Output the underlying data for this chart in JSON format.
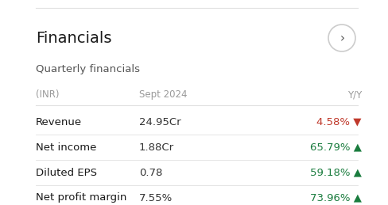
{
  "title": "Financials",
  "subtitle": "Quarterly financials",
  "bg_color": "#ffffff",
  "header_color": "#999999",
  "title_color": "#1a1a1a",
  "subtitle_color": "#555555",
  "label_color": "#1a1a1a",
  "value_color": "#333333",
  "green_color": "#1a7c3e",
  "red_color": "#c0392b",
  "col_headers": [
    "(INR)",
    "Sept 2024",
    "Y/Y"
  ],
  "rows": [
    {
      "label": "Revenue",
      "value": "24.95Cr",
      "yy": "4.58%",
      "direction": "down"
    },
    {
      "label": "Net income",
      "value": "1.88Cr",
      "yy": "65.79%",
      "direction": "up"
    },
    {
      "label": "Diluted EPS",
      "value": "0.78",
      "yy": "59.18%",
      "direction": "up"
    },
    {
      "label": "Net profit margin",
      "value": "7.55%",
      "yy": "73.96%",
      "direction": "up"
    }
  ],
  "divider_color": "#e0e0e0",
  "circle_edge_color": "#cccccc",
  "title_fontsize": 14,
  "subtitle_fontsize": 9.5,
  "header_fontsize": 8.5,
  "row_fontsize": 9.5
}
